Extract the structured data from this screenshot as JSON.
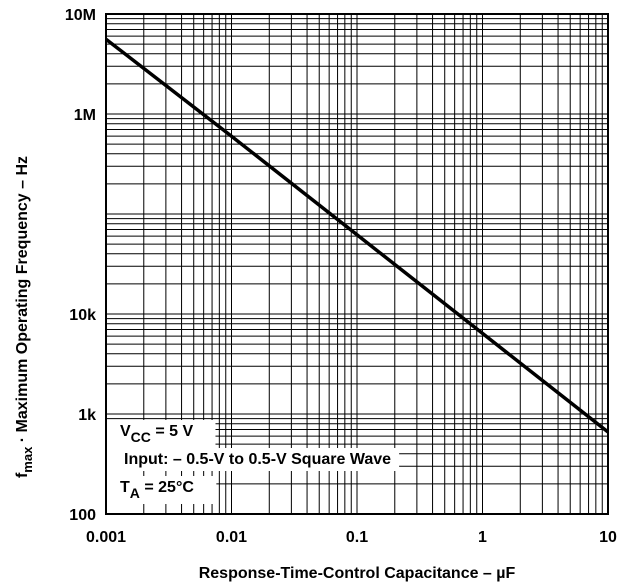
{
  "chart_data": {
    "type": "line",
    "title": "",
    "x_scale": "log",
    "y_scale": "log",
    "xlim": [
      0.001,
      10
    ],
    "ylim": [
      100,
      10000000
    ],
    "grid": true,
    "x_ticks": [
      {
        "value": 0.001,
        "label": "0.001"
      },
      {
        "value": 0.01,
        "label": "0.01"
      },
      {
        "value": 0.1,
        "label": "0.1"
      },
      {
        "value": 1,
        "label": "1"
      },
      {
        "value": 10,
        "label": "10"
      }
    ],
    "y_ticks": [
      {
        "value": 10000000,
        "label": "10M"
      },
      {
        "value": 1000000,
        "label": "1M"
      },
      {
        "value": 10000,
        "label": "10k"
      },
      {
        "value": 1000,
        "label": "1k"
      },
      {
        "value": 100,
        "label": "100"
      }
    ],
    "xlabel": "Response-Time-Control Capacitance – µF",
    "ylabel": {
      "main": "f",
      "sub": "max",
      "rest": " · Maximum Operating Frequency – Hz"
    },
    "series": [
      {
        "x": [
          0.001,
          0.01,
          0.1,
          1,
          10
        ],
        "y": [
          5600000,
          600000,
          62000,
          6400,
          660
        ]
      }
    ],
    "legend_placement": "bottom-left",
    "conditions": [
      {
        "main": "V",
        "sub": "CC",
        "rest": " = 5 V"
      },
      {
        "main": "Input: – 0.5-V to 0.5-V Square Wave",
        "sub": "",
        "rest": ""
      },
      {
        "main": "T",
        "sub": "A",
        "rest": " = 25°C"
      }
    ]
  }
}
